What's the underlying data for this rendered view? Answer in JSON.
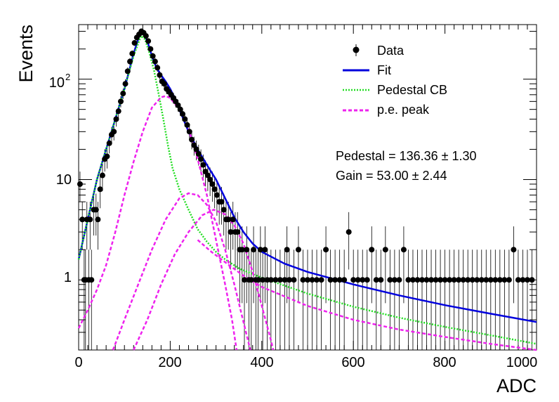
{
  "chart_data": {
    "type": "scatter",
    "xlabel": "ADC",
    "ylabel": "Events",
    "x_axis": {
      "min": 0,
      "max": 1000,
      "scale": "linear",
      "major_ticks": [
        0,
        200,
        400,
        600,
        800,
        1000
      ]
    },
    "y_axis": {
      "min": 0.2,
      "max": 350,
      "scale": "log",
      "tick_labels": [
        "1",
        "10",
        "10^2"
      ]
    },
    "grid": false,
    "legend_position": "top-right",
    "legend": [
      {
        "label": "Data",
        "style": "marker",
        "color": "#000000"
      },
      {
        "label": "Fit",
        "style": "line",
        "color": "#0000dd"
      },
      {
        "label": "Pedestal CB",
        "style": "dotted",
        "color": "#22dd22"
      },
      {
        "label": "p.e. peak",
        "style": "dashed",
        "color": "#ee22ee"
      }
    ],
    "annotations": [
      {
        "name": "Pedestal",
        "value": "136.36",
        "error": "1.30"
      },
      {
        "name": "Gain",
        "value": "53.00",
        "error": "2.44"
      }
    ],
    "series": [
      {
        "name": "Data",
        "type": "points_with_errors",
        "color": "#000000",
        "points": [
          [
            3,
            9
          ],
          [
            8,
            4
          ],
          [
            12,
            1
          ],
          [
            15,
            1
          ],
          [
            18,
            4
          ],
          [
            22,
            1
          ],
          [
            25,
            4
          ],
          [
            28,
            1
          ],
          [
            33,
            5
          ],
          [
            38,
            5
          ],
          [
            42,
            4
          ],
          [
            47,
            8
          ],
          [
            52,
            11
          ],
          [
            57,
            16
          ],
          [
            62,
            17
          ],
          [
            67,
            23
          ],
          [
            72,
            28
          ],
          [
            77,
            30
          ],
          [
            82,
            40
          ],
          [
            87,
            48
          ],
          [
            92,
            60
          ],
          [
            97,
            72
          ],
          [
            102,
            90
          ],
          [
            107,
            120
          ],
          [
            112,
            150
          ],
          [
            117,
            180
          ],
          [
            122,
            230
          ],
          [
            127,
            260
          ],
          [
            132,
            280
          ],
          [
            137,
            300
          ],
          [
            142,
            290
          ],
          [
            147,
            270
          ],
          [
            152,
            240
          ],
          [
            157,
            200
          ],
          [
            162,
            170
          ],
          [
            167,
            150
          ],
          [
            172,
            130
          ],
          [
            177,
            110
          ],
          [
            182,
            95
          ],
          [
            187,
            90
          ],
          [
            192,
            80
          ],
          [
            197,
            75
          ],
          [
            202,
            70
          ],
          [
            207,
            65
          ],
          [
            212,
            60
          ],
          [
            217,
            55
          ],
          [
            222,
            50
          ],
          [
            227,
            45
          ],
          [
            232,
            40
          ],
          [
            237,
            35
          ],
          [
            242,
            30
          ],
          [
            247,
            25
          ],
          [
            252,
            22
          ],
          [
            257,
            20
          ],
          [
            262,
            18
          ],
          [
            267,
            16
          ],
          [
            272,
            14
          ],
          [
            277,
            12
          ],
          [
            282,
            11
          ],
          [
            287,
            10
          ],
          [
            292,
            9
          ],
          [
            297,
            8
          ],
          [
            302,
            7
          ],
          [
            307,
            6
          ],
          [
            312,
            6
          ],
          [
            317,
            5
          ],
          [
            322,
            4
          ],
          [
            327,
            4
          ],
          [
            332,
            3
          ],
          [
            337,
            4
          ],
          [
            342,
            3
          ],
          [
            347,
            3
          ],
          [
            352,
            2
          ],
          [
            357,
            2
          ],
          [
            362,
            1
          ],
          [
            367,
            2
          ],
          [
            372,
            1
          ],
          [
            377,
            1
          ],
          [
            382,
            2
          ],
          [
            387,
            1
          ],
          [
            392,
            1
          ],
          [
            397,
            2
          ],
          [
            402,
            1
          ],
          [
            407,
            2
          ],
          [
            412,
            1
          ],
          [
            420,
            1
          ],
          [
            430,
            1
          ],
          [
            440,
            1
          ],
          [
            450,
            1
          ],
          [
            455,
            2
          ],
          [
            460,
            1
          ],
          [
            470,
            1
          ],
          [
            480,
            2
          ],
          [
            490,
            1
          ],
          [
            500,
            1
          ],
          [
            510,
            1
          ],
          [
            520,
            1
          ],
          [
            530,
            1
          ],
          [
            540,
            2
          ],
          [
            550,
            1
          ],
          [
            560,
            1
          ],
          [
            570,
            1
          ],
          [
            580,
            1
          ],
          [
            590,
            3
          ],
          [
            600,
            1
          ],
          [
            610,
            1
          ],
          [
            620,
            1
          ],
          [
            630,
            1
          ],
          [
            640,
            2
          ],
          [
            650,
            1
          ],
          [
            660,
            1
          ],
          [
            670,
            2
          ],
          [
            680,
            1
          ],
          [
            690,
            1
          ],
          [
            700,
            1
          ],
          [
            710,
            2
          ],
          [
            720,
            1
          ],
          [
            730,
            1
          ],
          [
            740,
            1
          ],
          [
            750,
            1
          ],
          [
            760,
            1
          ],
          [
            770,
            1
          ],
          [
            780,
            1
          ],
          [
            790,
            1
          ],
          [
            800,
            1
          ],
          [
            810,
            1
          ],
          [
            820,
            1
          ],
          [
            830,
            1
          ],
          [
            840,
            1
          ],
          [
            850,
            1
          ],
          [
            860,
            1
          ],
          [
            870,
            1
          ],
          [
            880,
            1
          ],
          [
            890,
            1
          ],
          [
            900,
            1
          ],
          [
            910,
            1
          ],
          [
            920,
            1
          ],
          [
            930,
            1
          ],
          [
            940,
            1
          ],
          [
            950,
            2
          ],
          [
            960,
            1
          ],
          [
            970,
            1
          ],
          [
            980,
            1
          ],
          [
            990,
            1
          ]
        ]
      },
      {
        "name": "Fit",
        "type": "line",
        "color": "#0000dd",
        "points": [
          [
            0,
            1.6
          ],
          [
            20,
            4
          ],
          [
            40,
            10
          ],
          [
            60,
            20
          ],
          [
            80,
            40
          ],
          [
            100,
            80
          ],
          [
            110,
            120
          ],
          [
            120,
            180
          ],
          [
            130,
            250
          ],
          [
            135,
            290
          ],
          [
            140,
            290
          ],
          [
            150,
            240
          ],
          [
            160,
            170
          ],
          [
            170,
            130
          ],
          [
            180,
            110
          ],
          [
            190,
            95
          ],
          [
            200,
            80
          ],
          [
            210,
            65
          ],
          [
            220,
            50
          ],
          [
            240,
            30
          ],
          [
            260,
            20
          ],
          [
            280,
            14
          ],
          [
            300,
            10
          ],
          [
            320,
            6.5
          ],
          [
            340,
            4.2
          ],
          [
            360,
            3.0
          ],
          [
            380,
            2.3
          ],
          [
            400,
            1.9
          ],
          [
            450,
            1.45
          ],
          [
            500,
            1.2
          ],
          [
            600,
            0.9
          ],
          [
            700,
            0.7
          ],
          [
            800,
            0.56
          ],
          [
            900,
            0.46
          ],
          [
            1000,
            0.38
          ]
        ]
      },
      {
        "name": "Pedestal CB",
        "type": "line",
        "color": "#22dd22",
        "points": [
          [
            0,
            1.6
          ],
          [
            20,
            4
          ],
          [
            40,
            10
          ],
          [
            60,
            20
          ],
          [
            80,
            40
          ],
          [
            100,
            80
          ],
          [
            120,
            170
          ],
          [
            136,
            270
          ],
          [
            145,
            250
          ],
          [
            155,
            180
          ],
          [
            165,
            120
          ],
          [
            175,
            70
          ],
          [
            185,
            40
          ],
          [
            195,
            22
          ],
          [
            205,
            13
          ],
          [
            220,
            8
          ],
          [
            240,
            5
          ],
          [
            260,
            3.2
          ],
          [
            280,
            2.4
          ],
          [
            300,
            1.9
          ],
          [
            320,
            1.6
          ],
          [
            350,
            1.3
          ],
          [
            400,
            1.05
          ],
          [
            500,
            0.73
          ],
          [
            600,
            0.54
          ],
          [
            700,
            0.42
          ],
          [
            800,
            0.34
          ],
          [
            900,
            0.28
          ],
          [
            1000,
            0.23
          ]
        ]
      },
      {
        "name": "p.e. peak 1",
        "type": "line",
        "color": "#ee22ee",
        "points": [
          [
            0,
            0.33
          ],
          [
            20,
            0.5
          ],
          [
            40,
            0.8
          ],
          [
            60,
            1.4
          ],
          [
            80,
            3
          ],
          [
            100,
            7
          ],
          [
            120,
            15
          ],
          [
            140,
            30
          ],
          [
            160,
            52
          ],
          [
            180,
            66
          ],
          [
            190,
            68
          ],
          [
            200,
            65
          ],
          [
            220,
            50
          ],
          [
            240,
            32
          ],
          [
            260,
            16
          ],
          [
            280,
            7
          ],
          [
            300,
            2.5
          ],
          [
            320,
            0.9
          ],
          [
            335,
            0.4
          ],
          [
            345,
            0.2
          ]
        ]
      },
      {
        "name": "p.e. peak 2",
        "type": "line",
        "color": "#ee22ee",
        "points": [
          [
            75,
            0.2
          ],
          [
            100,
            0.4
          ],
          [
            130,
            0.9
          ],
          [
            160,
            2
          ],
          [
            190,
            4
          ],
          [
            220,
            6.5
          ],
          [
            240,
            7.3
          ],
          [
            260,
            7.0
          ],
          [
            280,
            5.6
          ],
          [
            300,
            3.8
          ],
          [
            320,
            2.0
          ],
          [
            340,
            0.9
          ],
          [
            360,
            0.38
          ],
          [
            375,
            0.2
          ]
        ]
      },
      {
        "name": "p.e. peak 3",
        "type": "line",
        "color": "#ee22ee",
        "points": [
          [
            120,
            0.2
          ],
          [
            150,
            0.4
          ],
          [
            180,
            0.9
          ],
          [
            210,
            1.8
          ],
          [
            240,
            3.0
          ],
          [
            270,
            4.4
          ],
          [
            295,
            5.0
          ],
          [
            320,
            4.5
          ],
          [
            340,
            3.5
          ],
          [
            360,
            2.3
          ],
          [
            380,
            1.2
          ],
          [
            400,
            0.55
          ],
          [
            420,
            0.25
          ],
          [
            425,
            0.2
          ]
        ]
      },
      {
        "name": "p.e. tail",
        "type": "line",
        "color": "#ee22ee",
        "points": [
          [
            260,
            2.5
          ],
          [
            290,
            1.9
          ],
          [
            320,
            1.5
          ],
          [
            360,
            1.1
          ],
          [
            400,
            0.85
          ],
          [
            500,
            0.55
          ],
          [
            600,
            0.4
          ],
          [
            700,
            0.32
          ],
          [
            800,
            0.27
          ],
          [
            900,
            0.23
          ],
          [
            1000,
            0.2
          ]
        ]
      }
    ]
  }
}
